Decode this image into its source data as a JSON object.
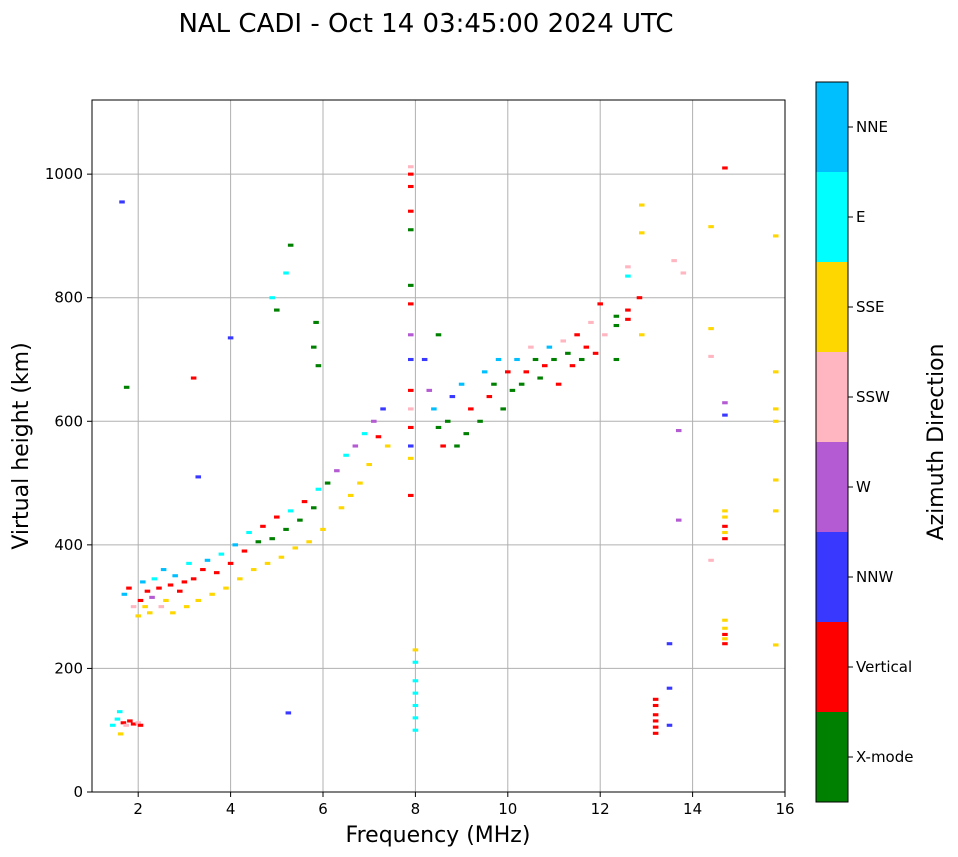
{
  "chart_data": {
    "type": "scatter",
    "title": "NAL CADI - Oct 14 03:45:00 2024 UTC",
    "xlabel": "Frequency (MHz)",
    "ylabel": "Virtual height (km)",
    "xlim": [
      1,
      16
    ],
    "ylim": [
      0,
      1120
    ],
    "xticks": [
      "2",
      "4",
      "6",
      "8",
      "10",
      "12",
      "14",
      "16"
    ],
    "yticks": [
      "0",
      "200",
      "400",
      "600",
      "800",
      "1000"
    ],
    "grid": true,
    "colorbar": {
      "label": "Azimuth Direction",
      "categories": [
        {
          "name": "X-mode",
          "color": "#008000"
        },
        {
          "name": "Vertical",
          "color": "#ff0000"
        },
        {
          "name": "NNW",
          "color": "#3838ff"
        },
        {
          "name": "W",
          "color": "#b45ad2"
        },
        {
          "name": "SSW",
          "color": "#ffb6c1"
        },
        {
          "name": "SSE",
          "color": "#ffd700"
        },
        {
          "name": "E",
          "color": "#00ffff"
        },
        {
          "name": "NNE",
          "color": "#00bfff"
        }
      ]
    },
    "point_width_mhz": 0.12,
    "point_height_km": 5,
    "points": [
      [
        1.45,
        108,
        "E"
      ],
      [
        1.55,
        118,
        "E"
      ],
      [
        1.62,
        94,
        "SSE"
      ],
      [
        1.68,
        112,
        "Vertical"
      ],
      [
        1.74,
        108,
        "SSW"
      ],
      [
        1.82,
        115,
        "Vertical"
      ],
      [
        1.9,
        110,
        "Vertical"
      ],
      [
        2.0,
        112,
        "SSW"
      ],
      [
        2.05,
        108,
        "Vertical"
      ],
      [
        1.6,
        130,
        "E"
      ],
      [
        1.7,
        320,
        "NNE"
      ],
      [
        1.8,
        330,
        "Vertical"
      ],
      [
        1.9,
        300,
        "SSW"
      ],
      [
        2.0,
        285,
        "SSE"
      ],
      [
        2.05,
        310,
        "Vertical"
      ],
      [
        2.1,
        340,
        "NNE"
      ],
      [
        2.15,
        300,
        "SSE"
      ],
      [
        2.2,
        325,
        "Vertical"
      ],
      [
        2.25,
        290,
        "SSE"
      ],
      [
        2.3,
        315,
        "W"
      ],
      [
        2.35,
        345,
        "E"
      ],
      [
        2.45,
        330,
        "Vertical"
      ],
      [
        2.5,
        300,
        "SSW"
      ],
      [
        2.55,
        360,
        "NNE"
      ],
      [
        2.6,
        310,
        "SSE"
      ],
      [
        2.7,
        335,
        "Vertical"
      ],
      [
        2.75,
        290,
        "SSE"
      ],
      [
        2.8,
        350,
        "NNE"
      ],
      [
        2.9,
        325,
        "Vertical"
      ],
      [
        3.0,
        340,
        "Vertical"
      ],
      [
        3.05,
        300,
        "SSE"
      ],
      [
        3.1,
        370,
        "E"
      ],
      [
        3.2,
        345,
        "Vertical"
      ],
      [
        3.3,
        310,
        "SSE"
      ],
      [
        3.4,
        360,
        "Vertical"
      ],
      [
        3.5,
        375,
        "NNE"
      ],
      [
        3.6,
        320,
        "SSE"
      ],
      [
        3.7,
        355,
        "Vertical"
      ],
      [
        3.8,
        385,
        "E"
      ],
      [
        3.9,
        330,
        "SSE"
      ],
      [
        4.0,
        370,
        "Vertical"
      ],
      [
        4.1,
        400,
        "NNE"
      ],
      [
        4.2,
        345,
        "SSE"
      ],
      [
        4.3,
        390,
        "Vertical"
      ],
      [
        4.4,
        420,
        "E"
      ],
      [
        4.5,
        360,
        "SSE"
      ],
      [
        4.6,
        405,
        "X-mode"
      ],
      [
        4.7,
        430,
        "Vertical"
      ],
      [
        4.8,
        370,
        "SSE"
      ],
      [
        4.9,
        410,
        "X-mode"
      ],
      [
        5.0,
        445,
        "Vertical"
      ],
      [
        5.1,
        380,
        "SSE"
      ],
      [
        5.2,
        425,
        "X-mode"
      ],
      [
        5.3,
        455,
        "E"
      ],
      [
        5.4,
        395,
        "SSE"
      ],
      [
        5.5,
        440,
        "X-mode"
      ],
      [
        5.6,
        470,
        "Vertical"
      ],
      [
        5.7,
        405,
        "SSE"
      ],
      [
        5.8,
        460,
        "X-mode"
      ],
      [
        5.9,
        490,
        "E"
      ],
      [
        6.0,
        425,
        "SSE"
      ],
      [
        6.1,
        500,
        "X-mode"
      ],
      [
        6.3,
        520,
        "W"
      ],
      [
        6.4,
        460,
        "SSE"
      ],
      [
        6.5,
        545,
        "E"
      ],
      [
        6.6,
        480,
        "SSE"
      ],
      [
        6.7,
        560,
        "W"
      ],
      [
        6.8,
        500,
        "SSE"
      ],
      [
        6.9,
        580,
        "E"
      ],
      [
        7.0,
        530,
        "SSE"
      ],
      [
        7.1,
        600,
        "W"
      ],
      [
        7.2,
        575,
        "Vertical"
      ],
      [
        7.3,
        620,
        "NNW"
      ],
      [
        7.4,
        560,
        "SSE"
      ],
      [
        3.3,
        510,
        "NNW"
      ],
      [
        3.2,
        670,
        "Vertical"
      ],
      [
        4.0,
        735,
        "NNW"
      ],
      [
        5.0,
        780,
        "X-mode"
      ],
      [
        5.2,
        840,
        "E"
      ],
      [
        5.3,
        885,
        "X-mode"
      ],
      [
        5.8,
        720,
        "X-mode"
      ],
      [
        5.9,
        690,
        "X-mode"
      ],
      [
        4.9,
        800,
        "E"
      ],
      [
        5.85,
        760,
        "X-mode"
      ],
      [
        1.65,
        955,
        "NNW"
      ],
      [
        1.75,
        655,
        "X-mode"
      ],
      [
        5.25,
        128,
        "NNW"
      ],
      [
        7.9,
        1000,
        "Vertical"
      ],
      [
        7.9,
        980,
        "Vertical"
      ],
      [
        7.9,
        940,
        "Vertical"
      ],
      [
        7.9,
        910,
        "X-mode"
      ],
      [
        7.9,
        1012,
        "SSW"
      ],
      [
        7.9,
        820,
        "X-mode"
      ],
      [
        7.9,
        790,
        "Vertical"
      ],
      [
        7.9,
        740,
        "W"
      ],
      [
        7.9,
        700,
        "NNW"
      ],
      [
        7.9,
        650,
        "Vertical"
      ],
      [
        7.9,
        620,
        "SSW"
      ],
      [
        7.9,
        590,
        "Vertical"
      ],
      [
        7.9,
        560,
        "NNW"
      ],
      [
        7.9,
        540,
        "SSE"
      ],
      [
        7.9,
        480,
        "Vertical"
      ],
      [
        8.0,
        230,
        "SSE"
      ],
      [
        8.0,
        210,
        "E"
      ],
      [
        8.0,
        180,
        "E"
      ],
      [
        8.0,
        160,
        "E"
      ],
      [
        8.0,
        140,
        "E"
      ],
      [
        8.0,
        120,
        "E"
      ],
      [
        8.0,
        100,
        "E"
      ],
      [
        8.2,
        700,
        "NNW"
      ],
      [
        8.3,
        650,
        "W"
      ],
      [
        8.4,
        620,
        "NNE"
      ],
      [
        8.5,
        590,
        "X-mode"
      ],
      [
        8.5,
        740,
        "X-mode"
      ],
      [
        8.6,
        560,
        "Vertical"
      ],
      [
        8.7,
        600,
        "X-mode"
      ],
      [
        8.8,
        640,
        "NNW"
      ],
      [
        8.9,
        560,
        "X-mode"
      ],
      [
        9.0,
        660,
        "NNE"
      ],
      [
        9.1,
        580,
        "X-mode"
      ],
      [
        9.2,
        620,
        "Vertical"
      ],
      [
        9.4,
        600,
        "X-mode"
      ],
      [
        9.5,
        680,
        "NNE"
      ],
      [
        9.6,
        640,
        "Vertical"
      ],
      [
        9.7,
        660,
        "X-mode"
      ],
      [
        9.8,
        700,
        "NNE"
      ],
      [
        9.9,
        620,
        "X-mode"
      ],
      [
        10.0,
        680,
        "Vertical"
      ],
      [
        10.1,
        650,
        "X-mode"
      ],
      [
        10.2,
        700,
        "NNE"
      ],
      [
        10.3,
        660,
        "X-mode"
      ],
      [
        10.4,
        680,
        "Vertical"
      ],
      [
        10.5,
        720,
        "SSW"
      ],
      [
        10.6,
        700,
        "X-mode"
      ],
      [
        10.7,
        670,
        "X-mode"
      ],
      [
        10.8,
        690,
        "Vertical"
      ],
      [
        10.9,
        720,
        "NNE"
      ],
      [
        11.0,
        700,
        "X-mode"
      ],
      [
        11.1,
        660,
        "Vertical"
      ],
      [
        11.2,
        730,
        "SSW"
      ],
      [
        11.3,
        710,
        "X-mode"
      ],
      [
        11.4,
        690,
        "Vertical"
      ],
      [
        11.5,
        740,
        "Vertical"
      ],
      [
        11.6,
        700,
        "X-mode"
      ],
      [
        11.7,
        720,
        "Vertical"
      ],
      [
        11.8,
        760,
        "SSW"
      ],
      [
        11.9,
        710,
        "Vertical"
      ],
      [
        12.0,
        790,
        "Vertical"
      ],
      [
        12.1,
        740,
        "SSW"
      ],
      [
        12.35,
        770,
        "X-mode"
      ],
      [
        12.35,
        755,
        "X-mode"
      ],
      [
        12.35,
        700,
        "X-mode"
      ],
      [
        12.6,
        780,
        "Vertical"
      ],
      [
        12.6,
        765,
        "Vertical"
      ],
      [
        12.85,
        800,
        "Vertical"
      ],
      [
        12.9,
        740,
        "SSE"
      ],
      [
        12.6,
        850,
        "SSW"
      ],
      [
        12.6,
        835,
        "E"
      ],
      [
        12.9,
        950,
        "SSE"
      ],
      [
        12.9,
        905,
        "SSE"
      ],
      [
        13.6,
        860,
        "SSW"
      ],
      [
        13.8,
        840,
        "SSW"
      ],
      [
        14.4,
        915,
        "SSE"
      ],
      [
        14.4,
        750,
        "SSE"
      ],
      [
        14.4,
        705,
        "SSW"
      ],
      [
        14.7,
        1010,
        "Vertical"
      ],
      [
        14.7,
        630,
        "W"
      ],
      [
        14.7,
        610,
        "NNW"
      ],
      [
        13.7,
        585,
        "W"
      ],
      [
        13.7,
        440,
        "W"
      ],
      [
        14.4,
        375,
        "SSW"
      ],
      [
        15.8,
        900,
        "SSE"
      ],
      [
        15.8,
        680,
        "SSE"
      ],
      [
        15.8,
        620,
        "SSE"
      ],
      [
        15.8,
        600,
        "SSE"
      ],
      [
        15.8,
        505,
        "SSE"
      ],
      [
        15.8,
        455,
        "SSE"
      ],
      [
        15.8,
        238,
        "SSE"
      ],
      [
        14.7,
        455,
        "SSE"
      ],
      [
        14.7,
        445,
        "SSE"
      ],
      [
        14.7,
        430,
        "Vertical"
      ],
      [
        14.7,
        420,
        "SSE"
      ],
      [
        14.7,
        410,
        "Vertical"
      ],
      [
        14.7,
        278,
        "SSE"
      ],
      [
        14.7,
        265,
        "SSE"
      ],
      [
        14.7,
        255,
        "Vertical"
      ],
      [
        14.7,
        248,
        "SSE"
      ],
      [
        14.7,
        240,
        "Vertical"
      ],
      [
        13.2,
        150,
        "Vertical"
      ],
      [
        13.2,
        140,
        "Vertical"
      ],
      [
        13.2,
        125,
        "Vertical"
      ],
      [
        13.2,
        115,
        "Vertical"
      ],
      [
        13.2,
        105,
        "Vertical"
      ],
      [
        13.2,
        95,
        "Vertical"
      ],
      [
        13.5,
        240,
        "NNW"
      ],
      [
        13.5,
        168,
        "NNW"
      ],
      [
        13.5,
        108,
        "NNW"
      ]
    ]
  }
}
